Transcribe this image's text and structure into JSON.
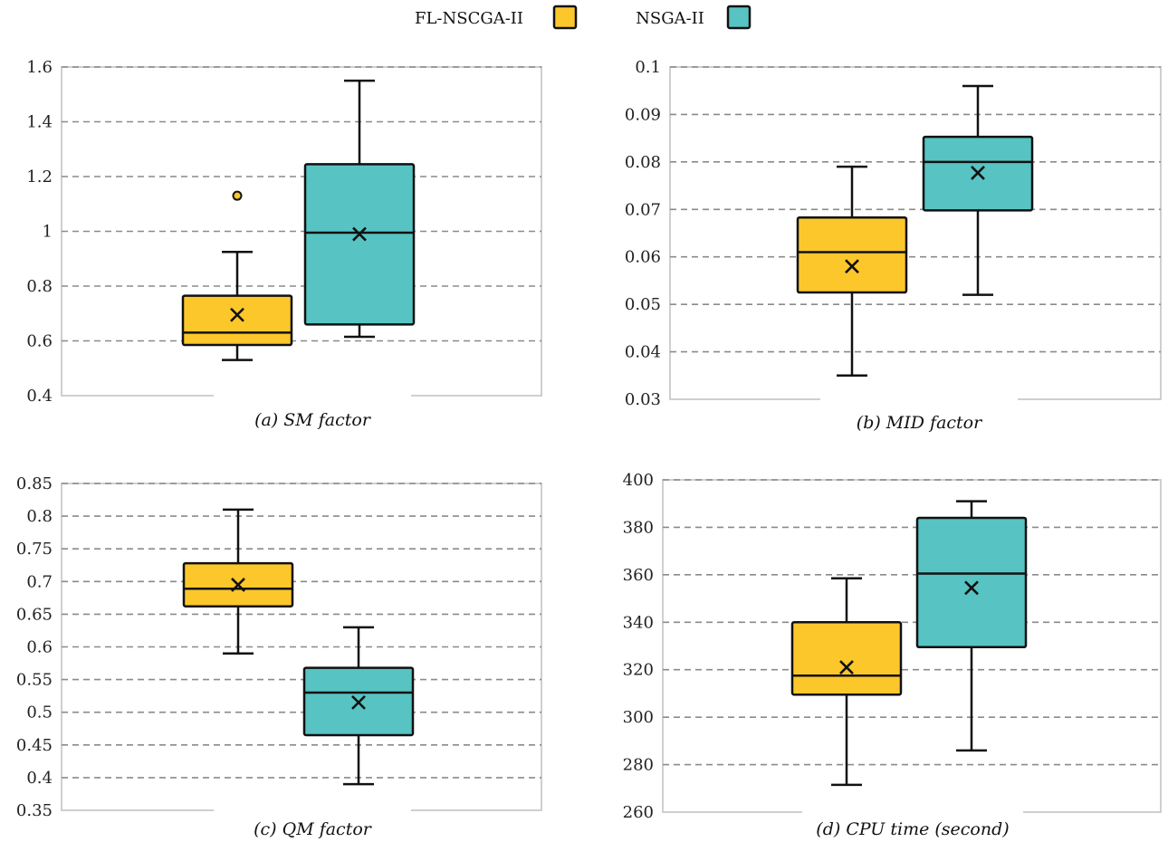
{
  "legend": {
    "position": "top-center",
    "items": [
      {
        "label": "FL-NSCGA-II",
        "color": "#FCC72B"
      },
      {
        "label": "NSGA-II",
        "color": "#57C3C3"
      }
    ]
  },
  "colors": {
    "fl": "#FCC72B",
    "nsga": "#57C3C3",
    "grid": "#8a8a8a",
    "frame": "#cfcfcf",
    "ink": "#111111"
  },
  "chart_data": [
    {
      "type": "box",
      "caption": "(a) SM factor",
      "ylim": [
        0.4,
        1.6
      ],
      "yticks": [
        0.4,
        0.6,
        0.8,
        1,
        1.2,
        1.4,
        1.6
      ],
      "ytick_labels": [
        "0.4",
        "0.6",
        "0.8",
        "1",
        "1.2",
        "1.4",
        "1.6"
      ],
      "grid": true,
      "series": [
        {
          "name": "FL-NSCGA-II",
          "min": 0.53,
          "q1": 0.585,
          "median": 0.63,
          "q3": 0.765,
          "max": 0.925,
          "mean": 0.695,
          "outliers": [
            1.13
          ]
        },
        {
          "name": "NSGA-II",
          "min": 0.615,
          "q1": 0.66,
          "median": 0.995,
          "q3": 1.245,
          "max": 1.55,
          "mean": 0.99,
          "outliers": []
        }
      ]
    },
    {
      "type": "box",
      "caption": "(b) MID factor",
      "ylim": [
        0.03,
        0.1
      ],
      "yticks": [
        0.03,
        0.04,
        0.05,
        0.06,
        0.07,
        0.08,
        0.09,
        0.1
      ],
      "ytick_labels": [
        "0.03",
        "0.04",
        "0.05",
        "0.06",
        "0.07",
        "0.08",
        "0.09",
        "0.1"
      ],
      "grid": true,
      "series": [
        {
          "name": "FL-NSCGA-II",
          "min": 0.035,
          "q1": 0.0525,
          "median": 0.061,
          "q3": 0.0683,
          "max": 0.079,
          "mean": 0.058,
          "outliers": []
        },
        {
          "name": "NSGA-II",
          "min": 0.052,
          "q1": 0.0698,
          "median": 0.08,
          "q3": 0.0853,
          "max": 0.096,
          "mean": 0.0777,
          "outliers": []
        }
      ]
    },
    {
      "type": "box",
      "caption": "(c) QM factor",
      "ylim": [
        0.35,
        0.85
      ],
      "yticks": [
        0.35,
        0.4,
        0.45,
        0.5,
        0.55,
        0.6,
        0.65,
        0.7,
        0.75,
        0.8,
        0.85
      ],
      "ytick_labels": [
        "0.35",
        "0.4",
        "0.45",
        "0.5",
        "0.55",
        "0.6",
        "0.65",
        "0.7",
        "0.75",
        "0.8",
        "0.85"
      ],
      "grid": true,
      "series": [
        {
          "name": "FL-NSCGA-II",
          "min": 0.59,
          "q1": 0.662,
          "median": 0.689,
          "q3": 0.728,
          "max": 0.81,
          "mean": 0.695,
          "outliers": []
        },
        {
          "name": "NSGA-II",
          "min": 0.39,
          "q1": 0.465,
          "median": 0.53,
          "q3": 0.568,
          "max": 0.63,
          "mean": 0.515,
          "outliers": []
        }
      ]
    },
    {
      "type": "box",
      "caption": "(d) CPU time (second)",
      "ylim": [
        260,
        400
      ],
      "yticks": [
        260,
        280,
        300,
        320,
        340,
        360,
        380,
        400
      ],
      "ytick_labels": [
        "260",
        "280",
        "300",
        "320",
        "340",
        "360",
        "380",
        "400"
      ],
      "grid": true,
      "series": [
        {
          "name": "FL-NSCGA-II",
          "min": 271.5,
          "q1": 309.5,
          "median": 317.5,
          "q3": 340,
          "max": 358.5,
          "mean": 321,
          "outliers": []
        },
        {
          "name": "NSGA-II",
          "min": 286,
          "q1": 329.5,
          "median": 360.5,
          "q3": 384,
          "max": 391,
          "mean": 354.5,
          "outliers": []
        }
      ]
    }
  ]
}
